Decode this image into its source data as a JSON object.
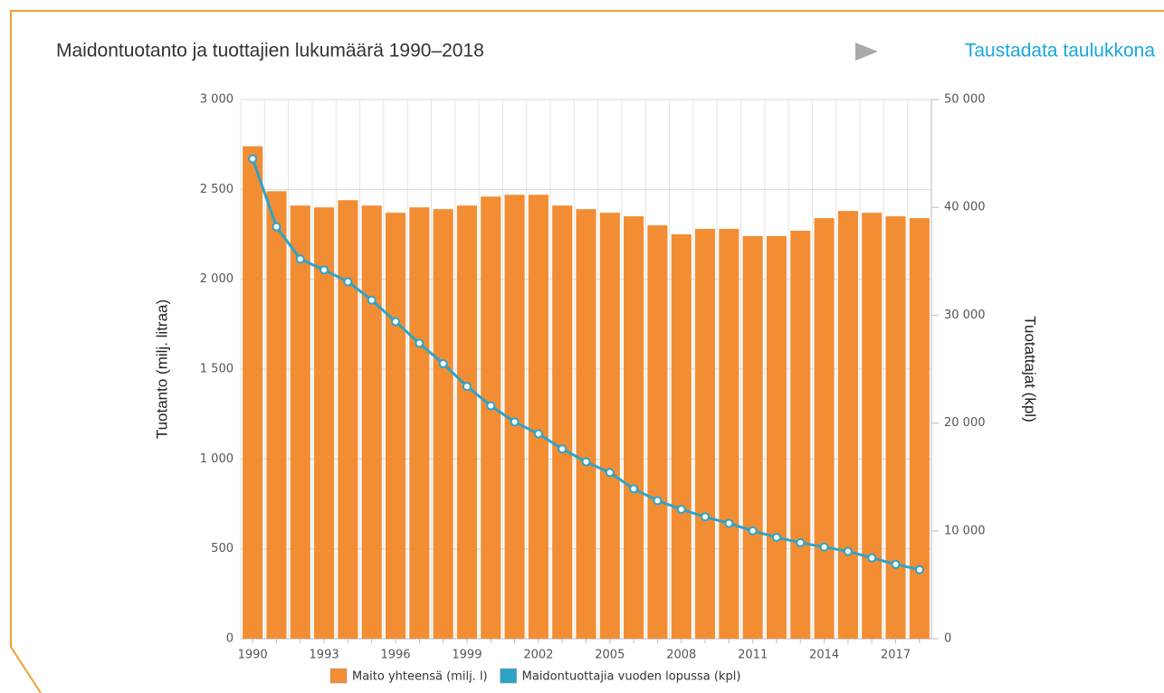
{
  "link": "Taustadata taulukkona",
  "chart_data": {
    "type": "bar",
    "title": "Maidontuotanto ja tuottajien lukumäärä 1990–2018",
    "ylabel": "Tuotanto (milj. litraa)",
    "y2label": "Tuotattajat (kpl)",
    "categories": [
      "1990",
      null,
      null,
      "1993",
      null,
      null,
      "1996",
      null,
      null,
      "1999",
      null,
      null,
      "2002",
      null,
      null,
      "2005",
      null,
      null,
      "2008",
      null,
      null,
      "2011",
      null,
      null,
      "2014",
      null,
      null,
      "2017",
      null
    ],
    "series": [
      {
        "name": "Maito yhteensä (milj. l)",
        "type": "bar",
        "color": "#f28d33",
        "values": [
          2740,
          2490,
          2410,
          2400,
          2440,
          2410,
          2370,
          2400,
          2390,
          2410,
          2460,
          2470,
          2470,
          2410,
          2390,
          2370,
          2350,
          2300,
          2250,
          2280,
          2280,
          2240,
          2240,
          2270,
          2340,
          2380,
          2370,
          2350,
          2340
        ]
      },
      {
        "name": "Maidontuottajia vuoden lopussa (kpl)",
        "type": "line",
        "axis": "y2",
        "color": "#2ea3c8",
        "values": [
          44500,
          38200,
          35200,
          34200,
          33100,
          31400,
          29400,
          27400,
          25500,
          23400,
          21600,
          20100,
          19000,
          17600,
          16400,
          15400,
          13900,
          12800,
          12000,
          11300,
          10700,
          10000,
          9400,
          8900,
          8500,
          8100,
          7500,
          6900,
          6400
        ]
      }
    ],
    "ylim": [
      0,
      3000
    ],
    "yticks": [
      0,
      500,
      {
        "value": 1000,
        "label": "1 000"
      },
      {
        "value": 1500,
        "label": "1 500"
      },
      {
        "value": 2000,
        "label": "2 000"
      },
      {
        "value": 2500,
        "label": "2 500"
      },
      {
        "value": 3000,
        "label": "3 000"
      }
    ],
    "y2lim": [
      0,
      50000
    ],
    "y2ticks": [
      0,
      {
        "value": 10000,
        "label": "10 000"
      },
      {
        "value": 20000,
        "label": "20 000"
      },
      {
        "value": 30000,
        "label": "30 000"
      },
      {
        "value": 40000,
        "label": "40 000"
      },
      {
        "value": 50000,
        "label": "50 000"
      }
    ],
    "grid": true
  }
}
